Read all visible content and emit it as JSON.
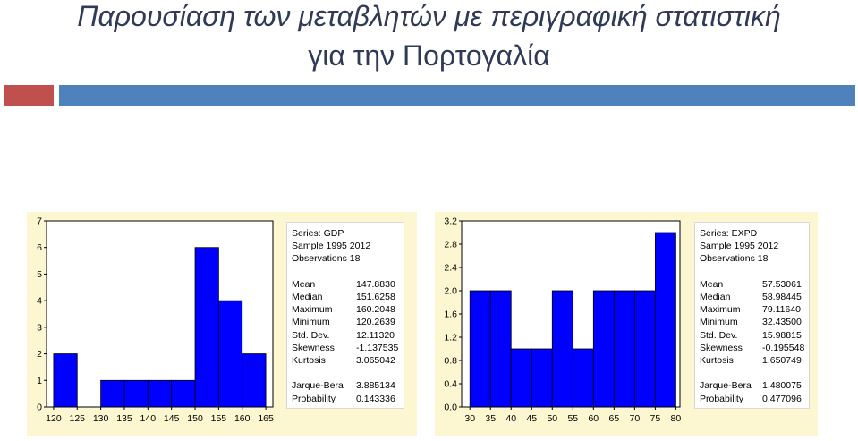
{
  "slide": {
    "title_line1": "Παρουσίαση των μεταβλητών με περιγραφική στατιστική",
    "title_line2": "για την Πορτογαλία",
    "accent_red": "#c0504d",
    "accent_blue": "#4f81bd"
  },
  "chart_data": [
    {
      "type": "bar",
      "subtype": "histogram",
      "bin_edges": [
        120,
        125,
        130,
        135,
        140,
        145,
        150,
        155,
        160,
        165
      ],
      "values": [
        2,
        0,
        1,
        1,
        1,
        1,
        6,
        4,
        2
      ],
      "x_tick_labels": [
        "120",
        "125",
        "130",
        "135",
        "140",
        "145",
        "150",
        "155",
        "160",
        "165"
      ],
      "y_tick_labels": [
        "0",
        "1",
        "2",
        "3",
        "4",
        "5",
        "6",
        "7"
      ],
      "y_ticks": [
        0,
        1,
        2,
        3,
        4,
        5,
        6,
        7
      ],
      "xlim": [
        118.5,
        166.5
      ],
      "ylim": [
        0,
        7
      ],
      "bar_color": "#0000ff",
      "grid": false,
      "stats": {
        "header": [
          "Series: GDP",
          "Sample 1995 2012",
          "Observations 18"
        ],
        "rows": [
          {
            "label": "Mean",
            "value": "147.8830"
          },
          {
            "label": "Median",
            "value": "151.6258"
          },
          {
            "label": "Maximum",
            "value": "160.2048"
          },
          {
            "label": "Minimum",
            "value": "120.2639"
          },
          {
            "label": "Std. Dev.",
            "value": "12.11320"
          },
          {
            "label": "Skewness",
            "value": "-1.137535"
          },
          {
            "label": "Kurtosis",
            "value": "3.065042"
          }
        ],
        "tests": [
          {
            "label": "Jarque-Bera",
            "value": "3.885134"
          },
          {
            "label": "Probability",
            "value": "0.143336"
          }
        ]
      }
    },
    {
      "type": "bar",
      "subtype": "histogram",
      "bin_edges": [
        30,
        35,
        40,
        45,
        50,
        55,
        60,
        65,
        70,
        75,
        80
      ],
      "values": [
        2,
        2,
        1,
        1,
        2,
        1,
        2,
        2,
        2,
        3
      ],
      "x_tick_labels": [
        "30",
        "35",
        "40",
        "45",
        "50",
        "55",
        "60",
        "65",
        "70",
        "75",
        "80"
      ],
      "y_tick_labels": [
        "0.0",
        "0.4",
        "0.8",
        "1.2",
        "1.6",
        "2.0",
        "2.4",
        "2.8",
        "3.2"
      ],
      "y_ticks": [
        0,
        0.4,
        0.8,
        1.2,
        1.6,
        2.0,
        2.4,
        2.8,
        3.2
      ],
      "xlim": [
        28,
        81
      ],
      "ylim": [
        0,
        3.2
      ],
      "bar_color": "#0000ff",
      "grid": false,
      "stats": {
        "header": [
          "Series: EXPD",
          "Sample 1995 2012",
          "Observations 18"
        ],
        "rows": [
          {
            "label": "Mean",
            "value": "57.53061"
          },
          {
            "label": "Median",
            "value": "58.98445"
          },
          {
            "label": "Maximum",
            "value": "79.11640"
          },
          {
            "label": "Minimum",
            "value": "32.43500"
          },
          {
            "label": "Std. Dev.",
            "value": "15.98815"
          },
          {
            "label": "Skewness",
            "value": "-0.195548"
          },
          {
            "label": "Kurtosis",
            "value": "1.650749"
          }
        ],
        "tests": [
          {
            "label": "Jarque-Bera",
            "value": "1.480075"
          },
          {
            "label": "Probability",
            "value": "0.477096"
          }
        ]
      }
    }
  ]
}
